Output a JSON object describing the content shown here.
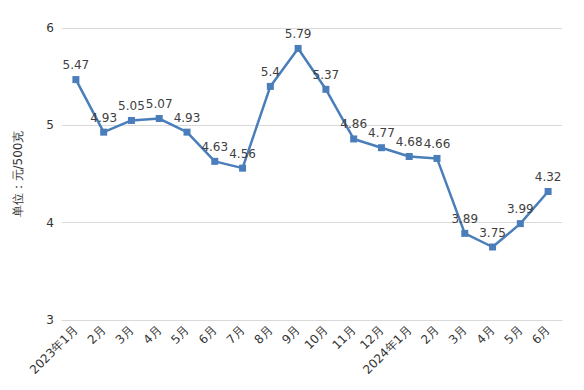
{
  "chart_data": {
    "type": "line",
    "y_label": "单位：元/500克",
    "categories": [
      "2023年1月",
      "2月",
      "3月",
      "4月",
      "5月",
      "6月",
      "7月",
      "8月",
      "9月",
      "10月",
      "11月",
      "12月",
      "2024年1月",
      "2月",
      "3月",
      "4月",
      "5月",
      "6月"
    ],
    "values": [
      5.47,
      4.93,
      5.05,
      5.07,
      4.93,
      4.63,
      4.56,
      5.4,
      5.79,
      5.37,
      4.86,
      4.77,
      4.68,
      4.66,
      3.89,
      3.75,
      3.99,
      4.32
    ],
    "color": "#4a7ebb",
    "marker": "square",
    "ylim": [
      3,
      6
    ],
    "yticks": [
      3,
      4,
      5,
      6
    ],
    "grid": true,
    "data_labels": true
  }
}
